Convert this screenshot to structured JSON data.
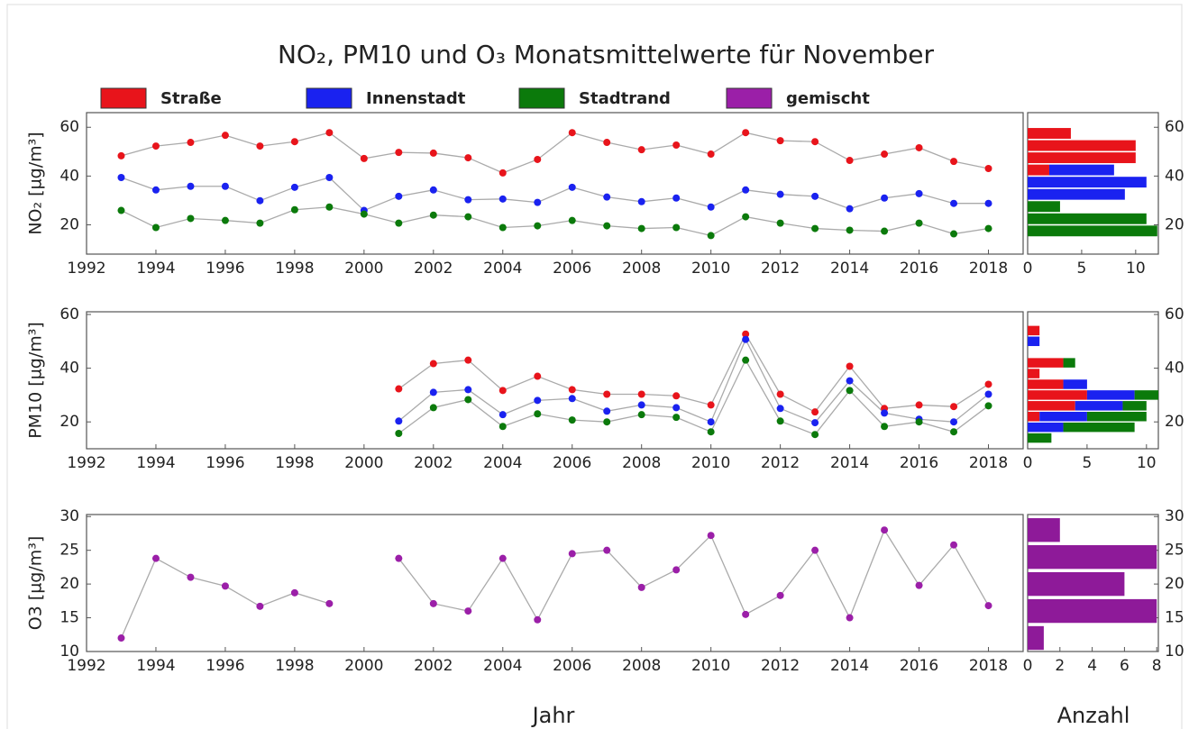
{
  "title": "NO₂, PM10 und O₃ Monatsmittelwerte für November",
  "x_label": "Jahr",
  "hist_x_label": "Anzahl",
  "chart_data": [
    {
      "type": "line",
      "y_label": "NO₂ [µg/m³]",
      "x": [
        1993,
        1994,
        1995,
        1996,
        1997,
        1998,
        1999,
        2000,
        2001,
        2002,
        2003,
        2004,
        2005,
        2006,
        2007,
        2008,
        2009,
        2010,
        2011,
        2012,
        2013,
        2014,
        2015,
        2016,
        2017,
        2018
      ],
      "series": [
        {
          "name": "Straße",
          "color": "#e8141b",
          "values": [
            48.3,
            52.3,
            53.8,
            56.7,
            52.3,
            54.1,
            57.8,
            47.2,
            49.7,
            49.4,
            47.5,
            41.3,
            46.8,
            57.8,
            53.8,
            50.8,
            52.7,
            49.0,
            57.8,
            54.5,
            54.1,
            46.4,
            49.0,
            51.6,
            46.0,
            43.1
          ]
        },
        {
          "name": "Innenstadt",
          "color": "#1a22f0",
          "values": [
            39.4,
            34.3,
            35.8,
            35.8,
            29.9,
            35.4,
            39.4,
            25.9,
            31.7,
            34.3,
            30.3,
            30.6,
            29.2,
            35.4,
            31.4,
            29.5,
            31.0,
            27.3,
            34.3,
            32.5,
            31.7,
            26.6,
            31.0,
            32.8,
            28.8,
            28.8
          ]
        },
        {
          "name": "Stadtrand",
          "color": "#0b7a0b",
          "values": [
            25.9,
            18.9,
            22.6,
            21.8,
            20.7,
            26.2,
            27.3,
            24.4,
            20.7,
            24.0,
            23.3,
            18.9,
            19.6,
            21.8,
            19.6,
            18.5,
            18.9,
            15.6,
            23.3,
            20.7,
            18.5,
            17.8,
            17.4,
            20.7,
            16.3,
            18.5
          ]
        }
      ],
      "xlim": [
        1992,
        2019
      ],
      "xticks": [
        1992,
        1994,
        1996,
        1998,
        2000,
        2002,
        2004,
        2006,
        2008,
        2010,
        2012,
        2014,
        2016,
        2018
      ],
      "ylim": [
        8,
        66
      ],
      "yticks": [
        20,
        40,
        60
      ]
    },
    {
      "type": "histogram",
      "orientation": "horizontal",
      "bins": [
        15,
        20,
        25,
        30,
        35,
        40,
        45,
        50,
        55,
        60
      ],
      "series": [
        {
          "name": "Straße",
          "color": "#e8141b",
          "values": [
            0,
            0,
            0,
            0,
            0,
            2,
            10,
            10,
            4
          ]
        },
        {
          "name": "Innenstadt",
          "color": "#1a22f0",
          "values": [
            0,
            0,
            0,
            9,
            11,
            6,
            0,
            0,
            0
          ]
        },
        {
          "name": "Stadtrand",
          "color": "#0b7a0b",
          "values": [
            12,
            11,
            3,
            0,
            0,
            0,
            0,
            0,
            0
          ]
        }
      ],
      "xlim": [
        0,
        12.1
      ],
      "xticks": [
        0,
        5,
        10
      ],
      "ylim": [
        8,
        66
      ],
      "yticks": [
        20,
        40,
        60
      ]
    },
    {
      "type": "line",
      "y_label": "PM10 [µg/m³]",
      "x": [
        1993,
        1994,
        1995,
        1996,
        1997,
        1998,
        1999,
        2000,
        2001,
        2002,
        2003,
        2004,
        2005,
        2006,
        2007,
        2008,
        2009,
        2010,
        2011,
        2012,
        2013,
        2014,
        2015,
        2016,
        2017,
        2018
      ],
      "series": [
        {
          "name": "Straße",
          "color": "#e8141b",
          "values": [
            null,
            null,
            null,
            null,
            null,
            null,
            null,
            null,
            32.3,
            41.7,
            43.0,
            31.7,
            37.0,
            32.0,
            30.3,
            30.3,
            29.7,
            26.3,
            52.7,
            30.3,
            23.7,
            40.7,
            25.0,
            26.3,
            25.7,
            34.0
          ]
        },
        {
          "name": "Innenstadt",
          "color": "#1a22f0",
          "values": [
            null,
            null,
            null,
            null,
            null,
            null,
            null,
            null,
            20.3,
            31.0,
            32.0,
            22.7,
            28.0,
            28.7,
            24.0,
            26.3,
            25.3,
            20.0,
            50.7,
            25.0,
            19.7,
            35.3,
            23.3,
            21.0,
            20.0,
            30.3
          ]
        },
        {
          "name": "Stadtrand",
          "color": "#0b7a0b",
          "values": [
            null,
            null,
            null,
            null,
            null,
            null,
            null,
            null,
            15.7,
            25.3,
            28.3,
            18.3,
            23.0,
            20.7,
            20.0,
            22.7,
            21.7,
            16.3,
            43.0,
            20.3,
            15.3,
            31.7,
            18.3,
            20.0,
            16.3,
            26.0
          ]
        }
      ],
      "xlim": [
        1992,
        2019
      ],
      "xticks": [
        1992,
        1994,
        1996,
        1998,
        2000,
        2002,
        2004,
        2006,
        2008,
        2010,
        2012,
        2014,
        2016,
        2018
      ],
      "ylim": [
        10,
        61
      ],
      "yticks": [
        20,
        40,
        60
      ]
    },
    {
      "type": "histogram",
      "orientation": "horizontal",
      "bins": [
        12,
        16,
        20,
        24,
        28,
        32,
        36,
        40,
        44,
        48,
        52,
        56
      ],
      "series": [
        {
          "name": "Straße",
          "color": "#e8141b",
          "values": [
            0,
            0,
            1,
            4,
            5,
            3,
            1,
            3,
            0,
            0,
            1
          ]
        },
        {
          "name": "Innenstadt",
          "color": "#1a22f0",
          "values": [
            0,
            3,
            4,
            4,
            4,
            2,
            0,
            0,
            0,
            1,
            0
          ]
        },
        {
          "name": "Stadtrand",
          "color": "#0b7a0b",
          "values": [
            2,
            6,
            5,
            2,
            2,
            0,
            0,
            1,
            0,
            0,
            0
          ]
        }
      ],
      "xlim": [
        0,
        11
      ],
      "xticks": [
        0,
        5,
        10
      ],
      "ylim": [
        10,
        61
      ],
      "yticks": [
        20,
        40,
        60
      ]
    },
    {
      "type": "line",
      "y_label": "O3 [µg/m³]",
      "x": [
        1993,
        1994,
        1995,
        1996,
        1997,
        1998,
        1999,
        2000,
        2001,
        2002,
        2003,
        2004,
        2005,
        2006,
        2007,
        2008,
        2009,
        2010,
        2011,
        2012,
        2013,
        2014,
        2015,
        2016,
        2017,
        2018
      ],
      "series": [
        {
          "name": "gemischt",
          "color": "#9b1fa8",
          "values": [
            12.0,
            23.8,
            21.0,
            19.7,
            16.7,
            18.7,
            17.1,
            null,
            23.8,
            17.1,
            16.0,
            23.8,
            14.7,
            24.5,
            25.0,
            19.5,
            22.1,
            27.2,
            15.5,
            18.3,
            25.0,
            15.0,
            28.0,
            19.8,
            25.8,
            16.8
          ]
        }
      ],
      "xlim": [
        1992,
        2019
      ],
      "xticks": [
        1992,
        1994,
        1996,
        1998,
        2000,
        2002,
        2004,
        2006,
        2008,
        2010,
        2012,
        2014,
        2016,
        2018
      ],
      "ylim": [
        10,
        30.3
      ],
      "yticks": [
        10,
        15,
        20,
        25,
        30
      ]
    },
    {
      "type": "histogram",
      "orientation": "horizontal",
      "bins": [
        10,
        14,
        18,
        22,
        26,
        30
      ],
      "series": [
        {
          "name": "gemischt",
          "color": "#8e1a99",
          "values": [
            1,
            8,
            6,
            8,
            2
          ]
        }
      ],
      "xlim": [
        0,
        8.1
      ],
      "xticks": [
        0,
        2,
        4,
        6,
        8
      ],
      "ylim": [
        10,
        30.3
      ],
      "yticks": [
        10,
        15,
        20,
        25,
        30
      ]
    }
  ]
}
